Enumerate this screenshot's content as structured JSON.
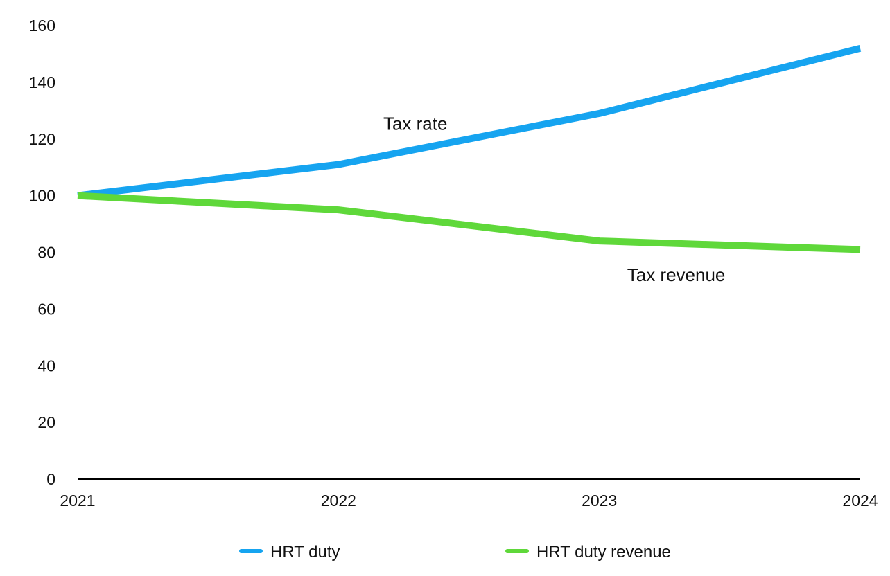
{
  "chart_data": {
    "type": "line",
    "title": "",
    "xlabel": "",
    "ylabel": "",
    "categories": [
      "2021",
      "2022",
      "2023",
      "2024"
    ],
    "ylim": [
      0,
      160
    ],
    "yticks": [
      0,
      20,
      40,
      60,
      80,
      100,
      120,
      140,
      160
    ],
    "grid": false,
    "legend_position": "bottom",
    "series": [
      {
        "name": "HRT duty",
        "values": [
          100,
          111,
          129,
          152
        ],
        "color": "#16A4F0"
      },
      {
        "name": "HRT duty revenue",
        "values": [
          100,
          95,
          84,
          81
        ],
        "color": "#5FD83A"
      }
    ],
    "annotations": [
      {
        "text": "Tax rate",
        "series": 0,
        "x": 1.3
      },
      {
        "text": "Tax revenue",
        "series": 1,
        "x": 2.3
      }
    ]
  }
}
